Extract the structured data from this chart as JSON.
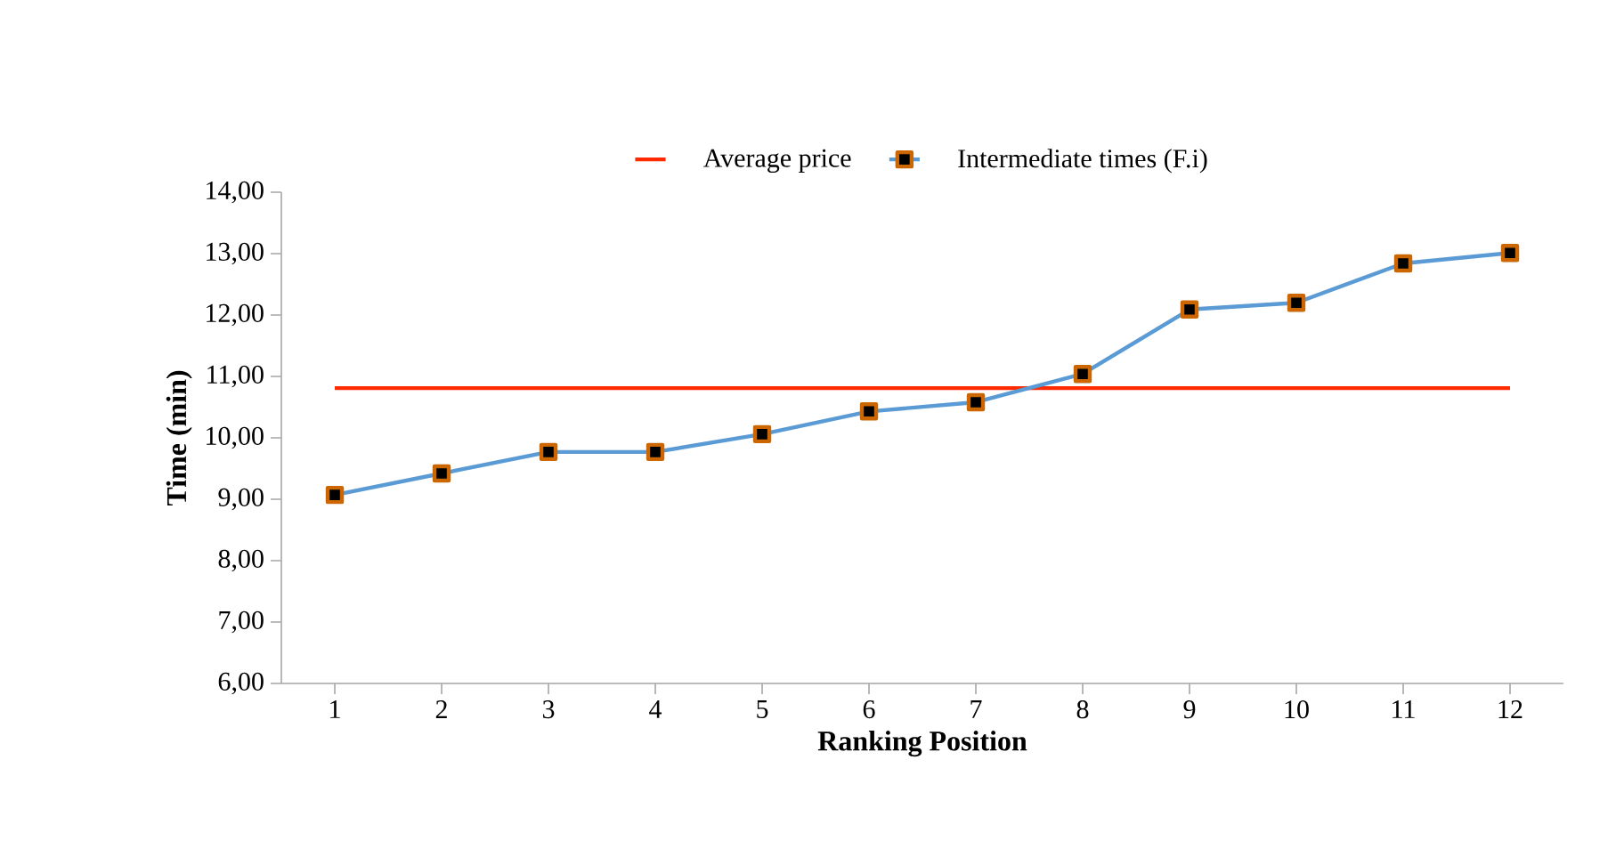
{
  "chart_data": {
    "type": "line",
    "xlabel": "Ranking Position",
    "ylabel": "Time  (min)",
    "categories": [
      "1",
      "2",
      "3",
      "4",
      "5",
      "6",
      "7",
      "8",
      "9",
      "10",
      "11",
      "12"
    ],
    "series": [
      {
        "name": "Average price",
        "color": "#ff2a00",
        "marker": "none",
        "values": [
          10.81,
          10.81,
          10.81,
          10.81,
          10.81,
          10.81,
          10.81,
          10.81,
          10.81,
          10.81,
          10.81,
          10.81
        ]
      },
      {
        "name": "Intermediate times (F.i)",
        "color": "#5b9bd5",
        "marker": "square",
        "values": [
          9.07,
          9.42,
          9.77,
          9.77,
          10.06,
          10.43,
          10.58,
          11.04,
          12.09,
          12.2,
          12.84,
          13.01
        ]
      }
    ],
    "ylim": [
      6,
      14
    ],
    "yticks": [
      {
        "value": 6,
        "label": "6,00"
      },
      {
        "value": 7,
        "label": "7,00"
      },
      {
        "value": 8,
        "label": "8,00"
      },
      {
        "value": 9,
        "label": "9,00"
      },
      {
        "value": 10,
        "label": "10,00"
      },
      {
        "value": 11,
        "label": "11,00"
      },
      {
        "value": 12,
        "label": "12,00"
      },
      {
        "value": 13,
        "label": "13,00"
      },
      {
        "value": 14,
        "label": "14,00"
      }
    ],
    "grid": false,
    "legend": "top",
    "line_style": "solid"
  }
}
